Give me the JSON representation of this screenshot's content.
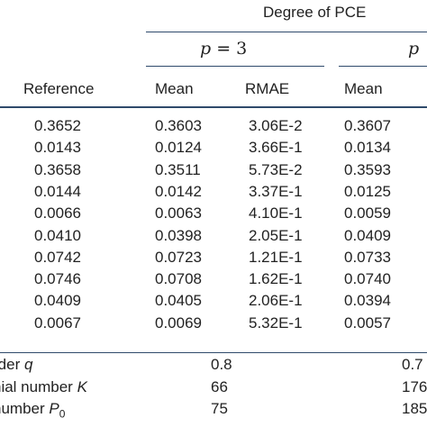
{
  "header": {
    "group_title": "Degree of PCE",
    "p3_label": "p = 3",
    "p_next_label": "p",
    "reference_col": "Reference",
    "mean_col": "Mean",
    "rmae_col": "RMAE",
    "mean_col_2": "Mean"
  },
  "rows": [
    {
      "reference": "0.3652",
      "mean": "0.3603",
      "rmae": "3.06E-2",
      "mean2": "0.3607"
    },
    {
      "reference": "0.0143",
      "mean": "0.0124",
      "rmae": "3.66E-1",
      "mean2": "0.0134"
    },
    {
      "reference": "0.3658",
      "mean": "0.3511",
      "rmae": "5.73E-2",
      "mean2": "0.3593"
    },
    {
      "reference": "0.0144",
      "mean": "0.0142",
      "rmae": "3.37E-1",
      "mean2": "0.0125"
    },
    {
      "reference": "0.0066",
      "mean": "0.0063",
      "rmae": "4.10E-1",
      "mean2": "0.0059"
    },
    {
      "reference": "0.0410",
      "mean": "0.0398",
      "rmae": "2.05E-1",
      "mean2": "0.0409"
    },
    {
      "reference": "0.0742",
      "mean": "0.0723",
      "rmae": "1.21E-1",
      "mean2": "0.0733"
    },
    {
      "reference": "0.0746",
      "mean": "0.0708",
      "rmae": "1.62E-1",
      "mean2": "0.0740"
    },
    {
      "reference": "0.0409",
      "mean": "0.0405",
      "rmae": "2.06E-1",
      "mean2": "0.0394"
    },
    {
      "reference": "0.0067",
      "mean": "0.0069",
      "rmae": "5.32E-1",
      "mean2": "0.0057"
    }
  ],
  "footer": [
    {
      "label_a": "rder ",
      "label_var": "q",
      "label_sub": "",
      "value": "0.8",
      "value2": "0.7"
    },
    {
      "label_a": "nial number ",
      "label_var": "K",
      "label_sub": "",
      "value": "66",
      "value2": "176"
    },
    {
      "label_a": "number ",
      "label_var": "P",
      "label_sub": "0",
      "value": "75",
      "value2": "185"
    }
  ]
}
